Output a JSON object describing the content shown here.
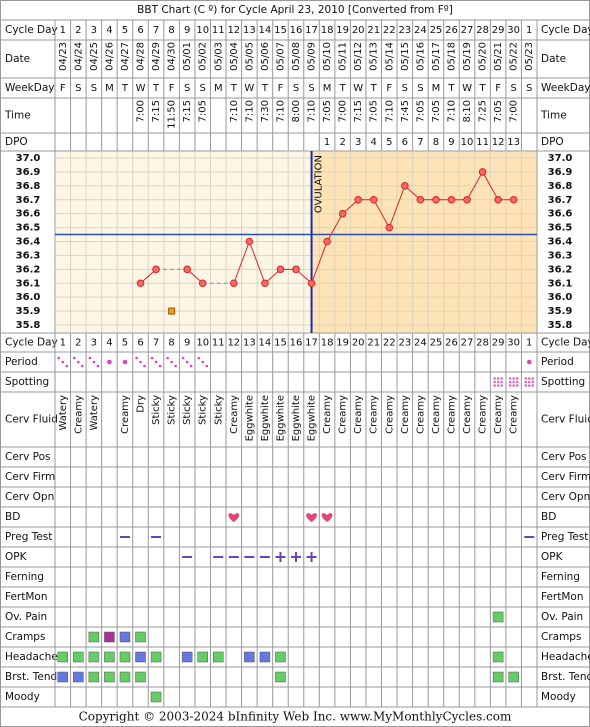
{
  "title": "BBT Chart (C º) for Cycle April 23, 2010  [Converted from Fº]",
  "footer": "Copyright © 2003-2024 bInfinity Web Inc.    www.MyMonthlyCycles.com",
  "rows": {
    "cycle_day": "Cycle Day",
    "date": "Date",
    "weekday": "WeekDay",
    "time": "Time",
    "dpo": "DPO",
    "period": "Period",
    "spotting": "Spotting",
    "cerv_fluid": "Cerv Fluid",
    "cerv_pos": "Cerv Pos",
    "cerv_firm": "Cerv Firm",
    "cerv_opn": "Cerv Opn",
    "bd": "BD",
    "preg_test": "Preg Test",
    "opk": "OPK",
    "ferning": "Ferning",
    "fertmon": "FertMon",
    "ov_pain": "Ov. Pain",
    "cramps": "Cramps",
    "headache": "Headache",
    "brst_tend": "Brst. Tend.",
    "moody": "Moody"
  },
  "cerv_fluid": [
    "Watery",
    "Creamy",
    "Watery",
    null,
    "Creamy",
    "Dry",
    "Sticky",
    "Sticky",
    "Sticky",
    "Sticky",
    "Sticky",
    "Creamy",
    "Eggwhite",
    "Eggwhite",
    "Eggwhite",
    "Eggwhite",
    "Eggwhite",
    "Creamy",
    "Creamy",
    "Creamy",
    "Creamy",
    "Creamy",
    "Creamy",
    "Creamy",
    "Creamy",
    "Creamy",
    "Creamy",
    "Creamy",
    "Creamy",
    "Creamy",
    null
  ],
  "chart_data": {
    "type": "line",
    "categories": [
      "1",
      "2",
      "3",
      "4",
      "5",
      "6",
      "7",
      "8",
      "9",
      "10",
      "11",
      "12",
      "13",
      "14",
      "15",
      "16",
      "17",
      "18",
      "19",
      "20",
      "21",
      "22",
      "23",
      "24",
      "25",
      "26",
      "27",
      "28",
      "29",
      "30",
      "1"
    ],
    "dates": [
      "04/23",
      "04/24",
      "04/25",
      "04/26",
      "04/27",
      "04/28",
      "04/29",
      "04/30",
      "05/01",
      "05/02",
      "05/03",
      "05/04",
      "05/05",
      "05/06",
      "05/07",
      "05/08",
      "05/09",
      "05/10",
      "05/11",
      "05/12",
      "05/13",
      "05/14",
      "05/15",
      "05/16",
      "05/17",
      "05/18",
      "05/19",
      "05/20",
      "05/21",
      "05/22",
      "05/23"
    ],
    "weekdays": [
      "F",
      "S",
      "S",
      "M",
      "T",
      "W",
      "T",
      "F",
      "S",
      "S",
      "M",
      "T",
      "W",
      "T",
      "F",
      "S",
      "S",
      "M",
      "T",
      "W",
      "T",
      "F",
      "S",
      "S",
      "M",
      "T",
      "W",
      "T",
      "F",
      "S",
      "S"
    ],
    "times": [
      null,
      null,
      null,
      null,
      null,
      "7:00",
      "7:15",
      "11:50",
      "7:15",
      "7:05",
      null,
      "7:10",
      "7:10",
      "7:30",
      "7:10",
      "8:00",
      "7:10",
      "7:05",
      "7:00",
      "7:15",
      "7:05",
      "7:10",
      "7:45",
      "7:05",
      "7:05",
      "7:10",
      "8:10",
      "7:25",
      "7:05",
      "7:00",
      null
    ],
    "dpo": [
      null,
      null,
      null,
      null,
      null,
      null,
      null,
      null,
      null,
      null,
      null,
      null,
      null,
      null,
      null,
      null,
      null,
      1,
      2,
      3,
      4,
      5,
      6,
      7,
      8,
      9,
      10,
      11,
      12,
      13,
      null
    ],
    "series": [
      {
        "color": "#dd2222",
        "values": [
          null,
          null,
          null,
          null,
          null,
          36.1,
          36.2,
          null,
          36.2,
          36.1,
          null,
          36.1,
          36.4,
          36.1,
          36.2,
          36.2,
          36.1,
          36.4,
          36.6,
          36.7,
          36.7,
          36.5,
          36.8,
          36.7,
          36.7,
          36.7,
          36.7,
          36.9,
          36.7,
          36.7,
          null
        ]
      }
    ],
    "discarded": {
      "color": "#f39a1e",
      "values": [
        null,
        null,
        null,
        null,
        null,
        null,
        null,
        35.9,
        null,
        null,
        null,
        null,
        null,
        null,
        null,
        null,
        null,
        null,
        null,
        null,
        null,
        null,
        null,
        null,
        null,
        null,
        null,
        null,
        null,
        null,
        null
      ]
    },
    "ylim": [
      35.8,
      37.0
    ],
    "yticks": [
      {
        "value": 37,
        "label": "37.0"
      },
      36.9,
      36.8,
      36.7,
      36.6,
      36.5,
      36.4,
      36.3,
      36.2,
      36.1,
      {
        "value": 36,
        "label": "36.0"
      },
      35.9,
      35.8
    ],
    "coverline": 36.45,
    "ovulation_day": 17,
    "ovulation_label": "OVULATION",
    "grid": true
  }
}
